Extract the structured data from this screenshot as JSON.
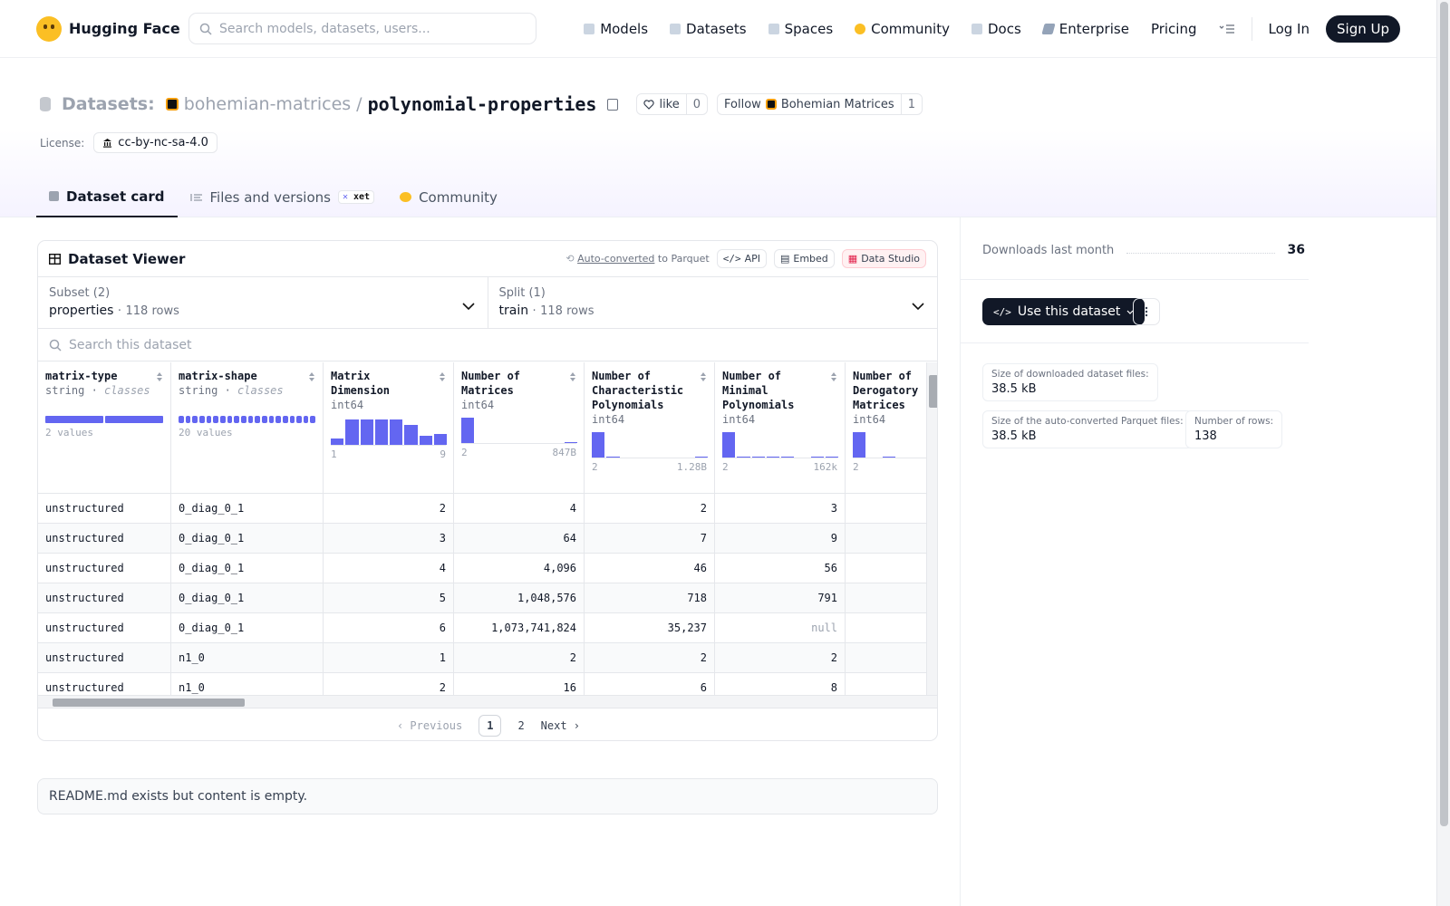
{
  "header": {
    "brand": "Hugging Face",
    "search_placeholder": "Search models, datasets, users...",
    "nav": [
      "Models",
      "Datasets",
      "Spaces",
      "Community",
      "Docs",
      "Enterprise",
      "Pricing"
    ],
    "login": "Log In",
    "signup": "Sign Up"
  },
  "repo": {
    "type_label": "Datasets:",
    "org": "bohemian-matrices",
    "slash": "/",
    "name": "polynomial-properties",
    "like_label": "like",
    "like_count": "0",
    "follow_label": "Follow",
    "follow_org": "Bohemian Matrices",
    "follow_count": "1",
    "license_label": "License:",
    "license": "cc-by-nc-sa-4.0"
  },
  "tabs": {
    "card": "Dataset card",
    "files": "Files and versions",
    "xet": "xet",
    "community": "Community"
  },
  "viewer": {
    "title": "Dataset Viewer",
    "auto_converted": "Auto-converted",
    "to_parquet": "to Parquet",
    "api": "API",
    "embed": "Embed",
    "studio": "Data Studio",
    "subset_label": "Subset (2)",
    "subset_value": "properties",
    "subset_rows": "118 rows",
    "split_label": "Split (1)",
    "split_value": "train",
    "split_rows": "118 rows",
    "search_placeholder": "Search this dataset",
    "previous": "Previous",
    "page1": "1",
    "page2": "2",
    "next": "Next"
  },
  "columns": [
    {
      "name": "matrix-type",
      "type": "string",
      "kind": "classes",
      "summary": "2 values",
      "bar_fill": 1.0
    },
    {
      "name": "matrix-shape",
      "type": "string",
      "kind": "classes",
      "summary": "20 values",
      "bar_fill": 1.0
    },
    {
      "name": "Matrix Dimension",
      "type": "int64",
      "min": "1",
      "max": "9",
      "hist": [
        0.25,
        1.0,
        1.0,
        1.0,
        1.0,
        0.8,
        0.35,
        0.42
      ]
    },
    {
      "name": "Number of Matrices",
      "type": "int64",
      "min": "2",
      "max": "847B",
      "hist": [
        1.0,
        0,
        0,
        0,
        0,
        0,
        0,
        0.03
      ]
    },
    {
      "name": "Number of Characteristic Polynomials",
      "type": "int64",
      "min": "2",
      "max": "1.28B",
      "hist": [
        1.0,
        0.05,
        0,
        0,
        0,
        0,
        0,
        0.03
      ]
    },
    {
      "name": "Number of Minimal Polynomials",
      "type": "int64",
      "min": "2",
      "max": "162k",
      "hist": [
        1.0,
        0.05,
        0.05,
        0.05,
        0.05,
        0,
        0.05,
        0.05
      ]
    },
    {
      "name": "Number of Derogatory Matrices",
      "type": "int64",
      "min": "2",
      "max": "",
      "hist": [
        1.0,
        0,
        0.05
      ]
    }
  ],
  "rows": [
    [
      "unstructured",
      "0_diag_0_1",
      "2",
      "4",
      "2",
      "3",
      ""
    ],
    [
      "unstructured",
      "0_diag_0_1",
      "3",
      "64",
      "7",
      "9",
      ""
    ],
    [
      "unstructured",
      "0_diag_0_1",
      "4",
      "4,096",
      "46",
      "56",
      ""
    ],
    [
      "unstructured",
      "0_diag_0_1",
      "5",
      "1,048,576",
      "718",
      "791",
      ""
    ],
    [
      "unstructured",
      "0_diag_0_1",
      "6",
      "1,073,741,824",
      "35,237",
      "null",
      ""
    ],
    [
      "unstructured",
      "n1_0",
      "1",
      "2",
      "2",
      "2",
      ""
    ],
    [
      "unstructured",
      "n1_0",
      "2",
      "16",
      "6",
      "8",
      ""
    ]
  ],
  "readme": "README.md exists but content is empty.",
  "sidebar": {
    "downloads_label": "Downloads last month",
    "downloads_value": "36",
    "use_button": "Use this dataset",
    "stat1_label": "Size of downloaded dataset files:",
    "stat1_value": "38.5 kB",
    "stat2_label": "Size of the auto-converted Parquet files:",
    "stat2_value": "38.5 kB",
    "stat3_label": "Number of rows:",
    "stat3_value": "138"
  },
  "colors": {
    "accent": "#6366f1",
    "dark": "#111827"
  }
}
